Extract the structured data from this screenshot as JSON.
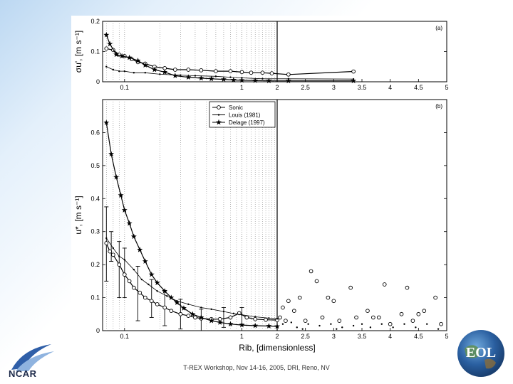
{
  "footer": {
    "caption": "T-REX Workshop, Nov 14-16, 2005, DRI, Reno, NV"
  },
  "logos": {
    "left": "NCAR",
    "right": "EOL"
  },
  "colors": {
    "background_gradient_start": "#bcd8f2",
    "marker": "#000000"
  },
  "chart_data": [
    {
      "type": "line",
      "panel_tag": "(a)",
      "ylabel": "σu', [m s⁻¹]",
      "x_scale": "log (0.07–2), linear (2–5)",
      "xlim": [
        0.065,
        5
      ],
      "ylim": [
        0,
        0.2
      ],
      "yticks": [
        "0",
        "0.1",
        "0.2"
      ],
      "xticks": [
        "0.1",
        "1",
        "2",
        "2.5",
        "3",
        "3.5",
        "4",
        "4.5",
        "5"
      ],
      "grid": "vertical dotted minor lines on log section",
      "vertical_line_at": 2,
      "series": [
        {
          "marker": "circle",
          "x": [
            0.07,
            0.08,
            0.09,
            0.1,
            0.115,
            0.13,
            0.15,
            0.18,
            0.22,
            0.27,
            0.35,
            0.45,
            0.6,
            0.8,
            1.0,
            1.2,
            1.5,
            1.8,
            2.2,
            3.35
          ],
          "y": [
            0.11,
            0.105,
            0.09,
            0.085,
            0.075,
            0.065,
            0.06,
            0.05,
            0.045,
            0.04,
            0.04,
            0.038,
            0.035,
            0.035,
            0.032,
            0.03,
            0.03,
            0.028,
            0.024,
            0.034
          ]
        },
        {
          "marker": "dot",
          "x": [
            0.07,
            0.08,
            0.09,
            0.1,
            0.12,
            0.15,
            0.2,
            0.3,
            0.4,
            0.6,
            0.8,
            1.0,
            1.5,
            2.2,
            3.35
          ],
          "y": [
            0.05,
            0.04,
            0.035,
            0.035,
            0.03,
            0.03,
            0.025,
            0.022,
            0.02,
            0.018,
            0.015,
            0.013,
            0.01,
            0.01,
            0.009
          ]
        },
        {
          "marker": "star",
          "x": [
            0.07,
            0.075,
            0.085,
            0.095,
            0.11,
            0.13,
            0.15,
            0.18,
            0.22,
            0.27,
            0.35,
            0.45,
            0.55,
            0.7,
            0.85,
            1.0,
            1.3,
            1.7,
            2.2,
            3.35
          ],
          "y": [
            0.155,
            0.125,
            0.09,
            0.085,
            0.08,
            0.07,
            0.055,
            0.04,
            0.032,
            0.02,
            0.015,
            0.012,
            0.01,
            0.008,
            0.006,
            0.005,
            0.004,
            0.003,
            0.003,
            0.003
          ]
        }
      ]
    },
    {
      "type": "line",
      "panel_tag": "(b)",
      "xlabel": "Rib, [dimensionless]",
      "ylabel": "u*, [m s⁻¹]",
      "x_scale": "log (0.07–2), linear (2–5)",
      "xlim": [
        0.065,
        5
      ],
      "ylim": [
        0,
        0.7
      ],
      "yticks": [
        "0",
        "0.1",
        "0.2",
        "0.3",
        "0.4",
        "0.5",
        "0.6"
      ],
      "xticks": [
        "0.1",
        "1",
        "2",
        "2.5",
        "3",
        "3.5",
        "4",
        "4.5",
        "5"
      ],
      "legend": {
        "placement": "top-left",
        "entries": [
          "Sonic",
          "Louis (1981)",
          "Delage (1997)"
        ]
      },
      "vertical_line_at": 2,
      "series": [
        {
          "name": "Sonic",
          "marker": "circle",
          "x": [
            0.07,
            0.075,
            0.08,
            0.09,
            0.1,
            0.11,
            0.12,
            0.135,
            0.15,
            0.17,
            0.19,
            0.22,
            0.25,
            0.3,
            0.35,
            0.4,
            0.45,
            0.55,
            0.65,
            0.8,
            0.95,
            1.1,
            1.3,
            1.6,
            2.0
          ],
          "y": [
            0.265,
            0.24,
            0.23,
            0.2,
            0.17,
            0.15,
            0.13,
            0.115,
            0.1,
            0.09,
            0.08,
            0.07,
            0.06,
            0.05,
            0.045,
            0.04,
            0.037,
            0.035,
            0.035,
            0.04,
            0.053,
            0.04,
            0.035,
            0.033,
            0.032
          ]
        },
        {
          "name": "Louis (1981)",
          "marker": "dot",
          "x": [
            0.07,
            0.08,
            0.09,
            0.1,
            0.12,
            0.14,
            0.16,
            0.19,
            0.23,
            0.28,
            0.35,
            0.45,
            0.55,
            0.7,
            0.85,
            1.0,
            1.3,
            1.7,
            2.0
          ],
          "y": [
            0.28,
            0.25,
            0.225,
            0.215,
            0.185,
            0.155,
            0.14,
            0.12,
            0.105,
            0.09,
            0.08,
            0.07,
            0.065,
            0.058,
            0.052,
            0.048,
            0.042,
            0.038,
            0.036
          ]
        },
        {
          "name": "Delage (1997)",
          "marker": "star",
          "x": [
            0.07,
            0.077,
            0.085,
            0.093,
            0.1,
            0.11,
            0.12,
            0.135,
            0.15,
            0.17,
            0.19,
            0.22,
            0.25,
            0.28,
            0.32,
            0.38,
            0.45,
            0.55,
            0.65,
            0.8,
            1.0,
            1.3,
            1.7,
            2.0
          ],
          "y": [
            0.63,
            0.535,
            0.465,
            0.41,
            0.365,
            0.325,
            0.285,
            0.245,
            0.21,
            0.17,
            0.145,
            0.12,
            0.1,
            0.085,
            0.068,
            0.05,
            0.04,
            0.03,
            0.025,
            0.02,
            0.017,
            0.015,
            0.014,
            0.013
          ]
        }
      ],
      "error_bars": [
        {
          "x": 0.07,
          "y": 0.265,
          "low": 0.15,
          "high": 0.375
        },
        {
          "x": 0.077,
          "y": 0.24,
          "low": 0.21,
          "high": 0.3
        },
        {
          "x": 0.09,
          "y": 0.2,
          "low": 0.1,
          "high": 0.27
        },
        {
          "x": 0.1,
          "y": 0.17,
          "low": 0.1,
          "high": 0.25
        },
        {
          "x": 0.13,
          "y": 0.115,
          "low": 0.03,
          "high": 0.195
        },
        {
          "x": 0.17,
          "y": 0.09,
          "low": 0.04,
          "high": 0.155
        },
        {
          "x": 0.22,
          "y": 0.07,
          "low": 0.015,
          "high": 0.12
        },
        {
          "x": 0.3,
          "y": 0.05,
          "low": 0.005,
          "high": 0.095
        },
        {
          "x": 0.45,
          "y": 0.037,
          "low": 0.0,
          "high": 0.065
        },
        {
          "x": 0.7,
          "y": 0.037,
          "low": 0.01,
          "high": 0.07
        },
        {
          "x": 1.0,
          "y": 0.05,
          "low": 0.02,
          "high": 0.07
        }
      ],
      "scatter_beyond_2": {
        "circles": [
          [
            2.1,
            0.07
          ],
          [
            2.2,
            0.09
          ],
          [
            2.3,
            0.06
          ],
          [
            2.4,
            0.1
          ],
          [
            2.6,
            0.18
          ],
          [
            2.7,
            0.15
          ],
          [
            2.8,
            0.04
          ],
          [
            2.9,
            0.1
          ],
          [
            3.0,
            0.09
          ],
          [
            3.1,
            0.03
          ],
          [
            3.3,
            0.13
          ],
          [
            3.6,
            0.06
          ],
          [
            3.7,
            0.04
          ],
          [
            3.9,
            0.14
          ],
          [
            4.0,
            0.02
          ],
          [
            4.2,
            0.05
          ],
          [
            4.3,
            0.13
          ],
          [
            4.5,
            0.05
          ],
          [
            4.6,
            0.06
          ],
          [
            4.8,
            0.1
          ],
          [
            2.15,
            0.03
          ],
          [
            2.5,
            0.03
          ],
          [
            3.4,
            0.04
          ],
          [
            3.8,
            0.04
          ],
          [
            4.4,
            0.03
          ],
          [
            4.9,
            0.02
          ],
          [
            2.05,
            0.04
          ]
        ],
        "dots": [
          [
            2.1,
            0.02
          ],
          [
            2.25,
            0.025
          ],
          [
            2.35,
            0.01
          ],
          [
            2.55,
            0.02
          ],
          [
            2.75,
            0.015
          ],
          [
            2.95,
            0.02
          ],
          [
            3.15,
            0.01
          ],
          [
            3.35,
            0.015
          ],
          [
            3.5,
            0.02
          ],
          [
            3.65,
            0.01
          ],
          [
            3.85,
            0.02
          ],
          [
            4.05,
            0.01
          ],
          [
            4.25,
            0.02
          ],
          [
            4.45,
            0.01
          ],
          [
            4.65,
            0.02
          ],
          [
            4.85,
            0.005
          ],
          [
            2.45,
            0.005
          ],
          [
            3.05,
            0.005
          ]
        ]
      }
    }
  ]
}
